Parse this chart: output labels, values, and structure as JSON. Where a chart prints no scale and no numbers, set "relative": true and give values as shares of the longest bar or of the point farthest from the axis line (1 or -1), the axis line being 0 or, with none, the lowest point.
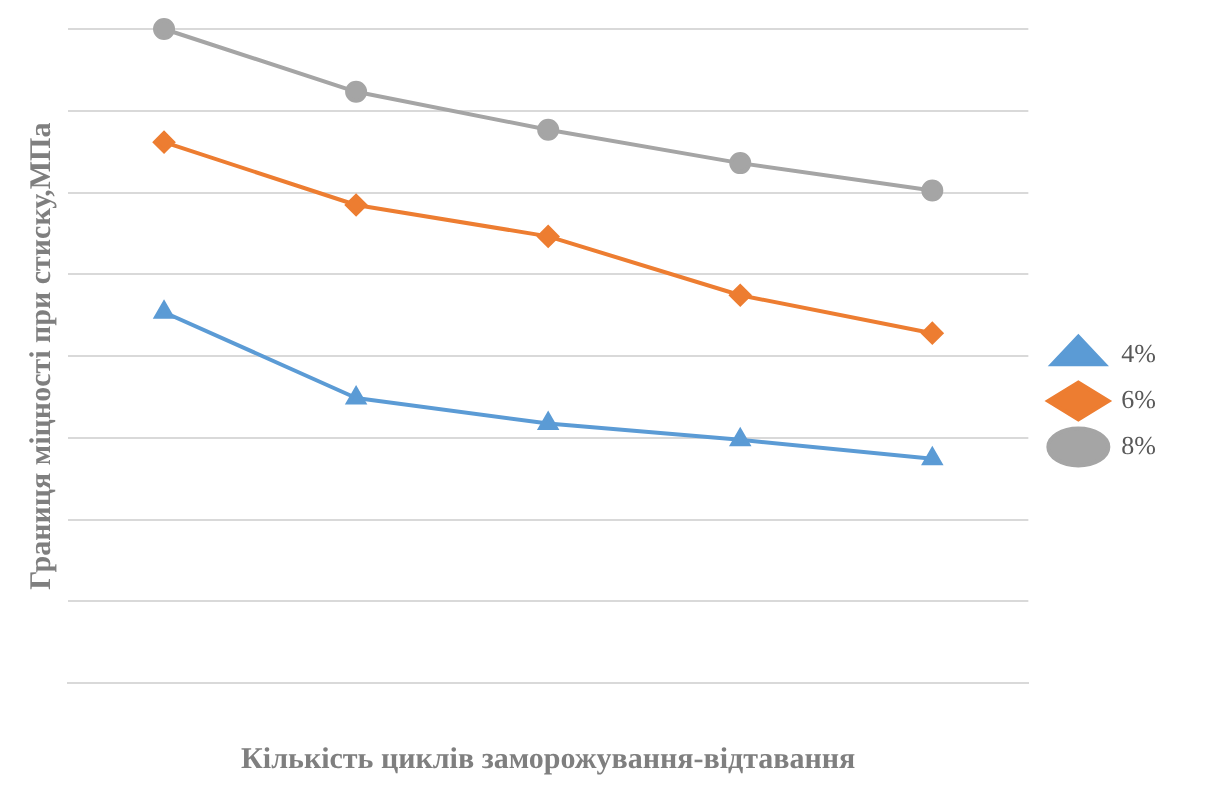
{
  "chart_data": {
    "type": "line",
    "relative": true,
    "xlabel": "Кількість циклів заморожування-відтавання",
    "ylabel": "Границя міцності при стиску,МПа",
    "categories": [
      null,
      null,
      null,
      null,
      null
    ],
    "grid": "y",
    "legend": "right",
    "series": [
      {
        "name": "4%",
        "color": "#5b9bd5",
        "marker": "triangle",
        "values": [
          0.567,
          0.436,
          0.397,
          0.372,
          0.343
        ]
      },
      {
        "name": "6%",
        "color": "#ed7d31",
        "marker": "diamond",
        "values": [
          0.827,
          0.731,
          0.683,
          0.593,
          0.535
        ]
      },
      {
        "name": "8%",
        "color": "#a5a5a5",
        "marker": "circle",
        "values": [
          1,
          0.904,
          0.846,
          0.795,
          0.753
        ]
      }
    ]
  }
}
